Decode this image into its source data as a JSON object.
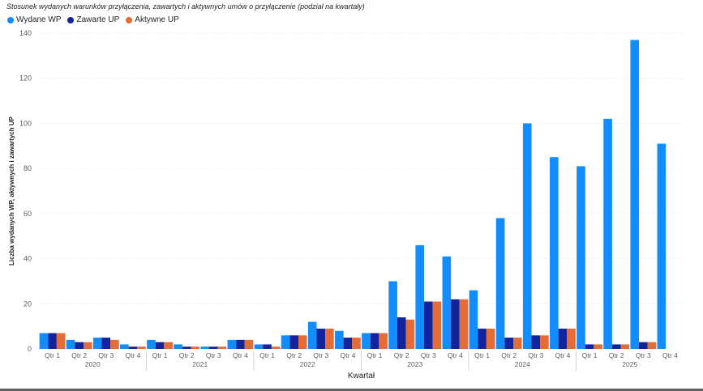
{
  "chart_data": {
    "type": "bar",
    "title": "Stosunek wydanych warunków przyłączenia, zawartych i aktywnych umów o przyłączenie (podział na kwartały)",
    "xlabel": "Kwartał",
    "ylabel": "Liczba wydanych WP, aktywnych i zawartych UP",
    "ylim": [
      0,
      140
    ],
    "yticks": [
      0,
      20,
      40,
      60,
      80,
      100,
      120,
      140
    ],
    "grid": true,
    "legend_position": "top-left",
    "years": [
      {
        "label": "2020",
        "count": 4
      },
      {
        "label": "2021",
        "count": 4
      },
      {
        "label": "2022",
        "count": 4
      },
      {
        "label": "2023",
        "count": 4
      },
      {
        "label": "2024",
        "count": 4
      },
      {
        "label": "2025",
        "count": 4
      }
    ],
    "categories": [
      "Qtr 1",
      "Qtr 2",
      "Qtr 3",
      "Qtr 4",
      "Qtr 1",
      "Qtr 2",
      "Qtr 3",
      "Qtr 4",
      "Qtr 1",
      "Qtr 2",
      "Qtr 3",
      "Qtr 4",
      "Qtr 1",
      "Qtr 2",
      "Qtr 3",
      "Qtr 4",
      "Qtr 1",
      "Qtr 2",
      "Qtr 3",
      "Qtr 4",
      "Qtr 1",
      "Qtr 2",
      "Qtr 3",
      "Qtr 4"
    ],
    "series": [
      {
        "name": "Wydane WP",
        "color": "#118DFF",
        "values": [
          7,
          4,
          5,
          2,
          4,
          2,
          1,
          4,
          2,
          6,
          12,
          8,
          7,
          30,
          46,
          41,
          26,
          58,
          100,
          85,
          81,
          102,
          137,
          91
        ]
      },
      {
        "name": "Zawarte UP",
        "color": "#12239E",
        "values": [
          7,
          3,
          5,
          1,
          3,
          1,
          1,
          4,
          2,
          6,
          9,
          5,
          7,
          14,
          21,
          22,
          9,
          5,
          6,
          9,
          2,
          2,
          3,
          0
        ]
      },
      {
        "name": "Aktywne UP",
        "color": "#E66C37",
        "values": [
          7,
          3,
          4,
          1,
          3,
          1,
          1,
          4,
          1,
          6,
          9,
          5,
          7,
          13,
          21,
          22,
          9,
          5,
          6,
          9,
          2,
          2,
          3,
          0
        ]
      }
    ]
  }
}
